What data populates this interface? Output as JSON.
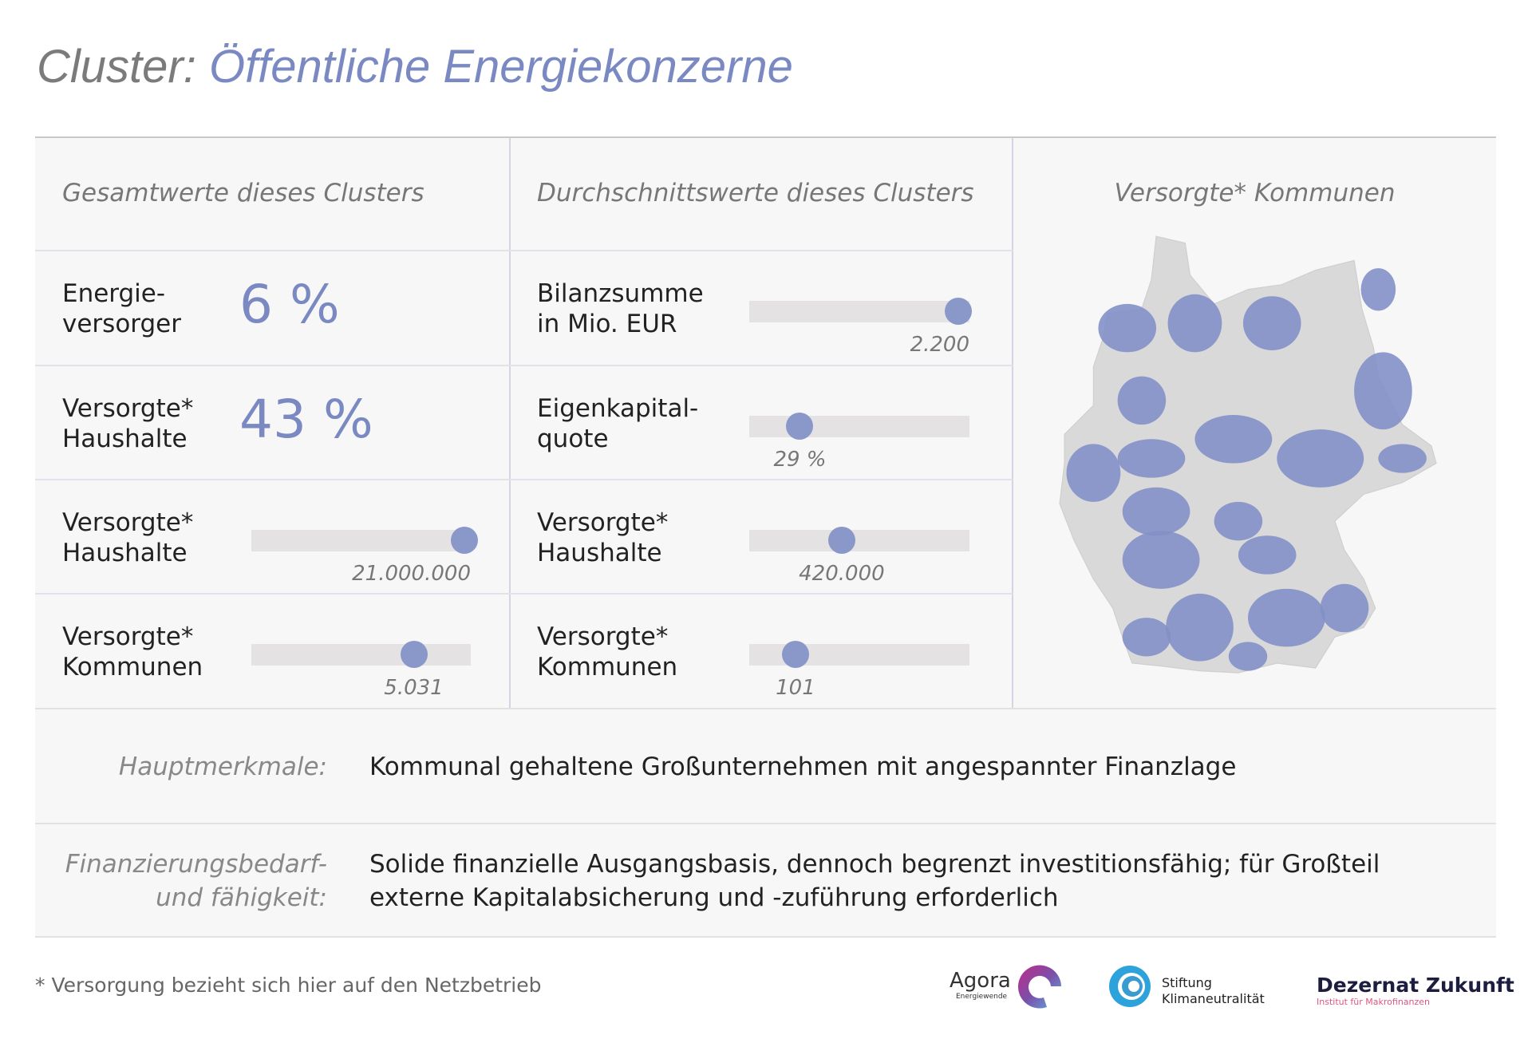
{
  "title": {
    "prefix": "Cluster:",
    "main": "Öffentliche Energiekonzerne"
  },
  "columns": {
    "totals": "Gesamtwerte dieses Clusters",
    "averages": "Durchschnittswerte dieses Clusters",
    "map": "Versorgte* Kommunen"
  },
  "totals": [
    {
      "label1": "Energie-",
      "label2": "versorger",
      "big": "6 %"
    },
    {
      "label1": "Versorgte*",
      "label2": "Haushalte",
      "big": "43 %"
    },
    {
      "label1": "Versorgte*",
      "label2": "Haushalte",
      "value": "21.000.000",
      "fraction": 0.97
    },
    {
      "label1": "Versorgte*",
      "label2": "Kommunen",
      "value": "5.031",
      "fraction": 0.74
    }
  ],
  "averages": [
    {
      "label1": "Bilanzsumme",
      "label2": "in Mio. EUR",
      "value": "2.200",
      "fraction": 0.95
    },
    {
      "label1": "Eigenkapital-",
      "label2": "quote",
      "value": "29 %",
      "fraction": 0.23
    },
    {
      "label1": "Versorgte*",
      "label2": "Haushalte",
      "value": "420.000",
      "fraction": 0.42
    },
    {
      "label1": "Versorgte*",
      "label2": "Kommunen",
      "value": "101",
      "fraction": 0.21
    }
  ],
  "features": {
    "label": "Hauptmerkmale:",
    "text": "Kommunal gehaltene Großunternehmen mit angespannter Finanzlage"
  },
  "financing": {
    "label1": "Finanzierungsbedarf-",
    "label2": "und fähigkeit:",
    "text1": "Solide finanzielle Ausgangsbasis, dennoch begrenzt investitionsfähig; für Großteil",
    "text2": "externe Kapitalabsicherung und -zuführung erforderlich"
  },
  "footnote": "* Versorgung bezieht sich hier auf den Netzbetrieb",
  "logos": {
    "agora": "Agora",
    "agora_sub": "Energiewende",
    "stiftung1": "Stiftung",
    "stiftung2": "Klimaneutralität",
    "dezernat": "Dezernat Zukunft",
    "dezernat_sub": "Institut für Makrofinanzen"
  },
  "colors": {
    "accent": "#7a89c2",
    "knob": "#8a97c9",
    "track": "#e4e2e2",
    "map_grey": "#d9d9d9"
  }
}
